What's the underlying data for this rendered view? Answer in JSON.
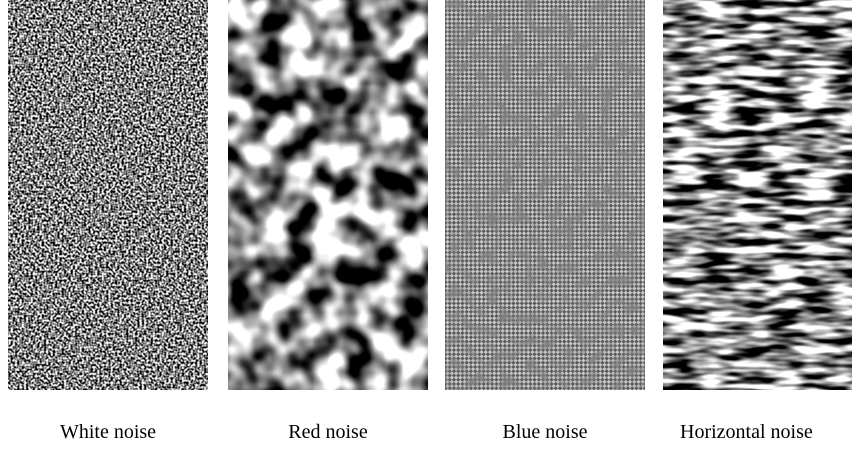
{
  "panels": [
    {
      "caption": "White noise"
    },
    {
      "caption": "Red noise"
    },
    {
      "caption": "Blue noise"
    },
    {
      "caption": "Horizontal noise"
    }
  ]
}
